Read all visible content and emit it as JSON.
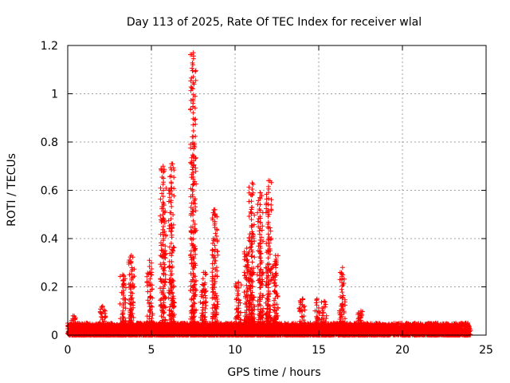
{
  "chart_data": {
    "type": "scatter",
    "title": "Day 113 of 2025, Rate Of TEC Index for receiver wlal",
    "xlabel": "GPS time / hours",
    "ylabel": "ROTI / TECUs",
    "xlim": [
      0,
      25
    ],
    "ylim": [
      0,
      1.2
    ],
    "x_ticks": [
      0,
      5,
      10,
      15,
      20,
      25
    ],
    "y_ticks": [
      0,
      0.2,
      0.4,
      0.6,
      0.8,
      1,
      1.2
    ],
    "x_tick_labels": [
      "0",
      "5",
      "10",
      "15",
      "20",
      "25"
    ],
    "y_tick_labels": [
      "0",
      "0.2",
      "0.4",
      "0.6",
      "0.8",
      "1",
      "1.2"
    ],
    "grid": true,
    "legend": "none",
    "marker": "plus",
    "color": "#ff0000",
    "baseline_band": [
      0.0,
      0.05
    ],
    "spike_clusters": [
      {
        "x": 0.3,
        "peak": 0.08
      },
      {
        "x": 2.1,
        "peak": 0.12
      },
      {
        "x": 3.3,
        "peak": 0.25
      },
      {
        "x": 3.8,
        "peak": 0.33
      },
      {
        "x": 4.9,
        "peak": 0.31
      },
      {
        "x": 5.7,
        "peak": 0.7
      },
      {
        "x": 6.2,
        "peak": 0.71
      },
      {
        "x": 7.5,
        "peak": 1.17
      },
      {
        "x": 8.1,
        "peak": 0.26
      },
      {
        "x": 8.8,
        "peak": 0.52
      },
      {
        "x": 10.2,
        "peak": 0.22
      },
      {
        "x": 10.7,
        "peak": 0.36
      },
      {
        "x": 11.0,
        "peak": 0.63
      },
      {
        "x": 11.5,
        "peak": 0.59
      },
      {
        "x": 12.0,
        "peak": 0.64
      },
      {
        "x": 12.4,
        "peak": 0.33
      },
      {
        "x": 14.0,
        "peak": 0.15
      },
      {
        "x": 14.9,
        "peak": 0.15
      },
      {
        "x": 15.3,
        "peak": 0.14
      },
      {
        "x": 16.4,
        "peak": 0.28
      },
      {
        "x": 17.5,
        "peak": 0.1
      },
      {
        "x": 22.0,
        "peak": 0.05
      },
      {
        "x": 23.9,
        "peak": 0.05
      }
    ]
  }
}
